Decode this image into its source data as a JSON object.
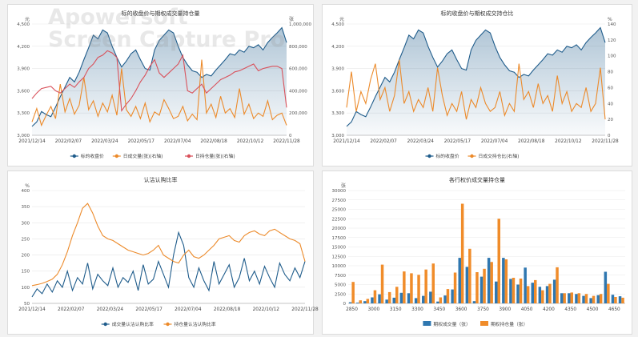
{
  "colors": {
    "blue": "#1f5c8b",
    "orange": "#ec8a2a",
    "red": "#d9515b",
    "axis": "#444444",
    "grid": "#e8e8e8",
    "bar_blue": "#2f77b0",
    "bar_orange": "#f08c2a"
  },
  "watermark": {
    "line1": "Apowersoft",
    "line2": "Screen Capture Pro"
  },
  "chart_data": [
    {
      "type": "line",
      "title": "标的收盘价与期权成交量持仓量",
      "y_unit_left": "元",
      "y_unit_right": "张",
      "x_ticks": [
        "2021/12/14",
        "2022/02/07",
        "2022/03/24",
        "2022/05/17",
        "2022/07/04",
        "2022/08/18",
        "2022/10/12",
        "2022/11/28"
      ],
      "ylim_left": [
        3000,
        4500
      ],
      "yticks_left": [
        "3,000",
        "3,300",
        "3,600",
        "3,900",
        "4,200",
        "4,500"
      ],
      "ylim_right": [
        0,
        1000000
      ],
      "yticks_right": [
        "0",
        "200,000",
        "400,000",
        "600,000",
        "800,000",
        "1,000,000"
      ],
      "series": [
        {
          "name": "标的收盘价",
          "axis": "left",
          "color": "#1f5c8b",
          "values": [
            3120,
            3180,
            3320,
            3280,
            3250,
            3380,
            3520,
            3650,
            3780,
            3720,
            3850,
            4020,
            4180,
            4350,
            4300,
            4420,
            4380,
            4200,
            4050,
            3920,
            4000,
            4100,
            4150,
            4020,
            3900,
            3880,
            4150,
            4280,
            4350,
            4420,
            4380,
            4200,
            4050,
            3950,
            3870,
            3850,
            3780,
            3820,
            3800,
            3880,
            3950,
            4020,
            4100,
            4080,
            4150,
            4120,
            4200,
            4180,
            4220,
            4150,
            4250,
            4320,
            4380,
            4450,
            4250
          ]
        },
        {
          "name": "日成交量(张)(右轴)",
          "axis": "right",
          "color": "#ec8a2a",
          "values": [
            120000,
            240000,
            90000,
            180000,
            260000,
            150000,
            460000,
            210000,
            330000,
            190000,
            270000,
            520000,
            230000,
            310000,
            170000,
            290000,
            210000,
            360000,
            180000,
            600000,
            230000,
            170000,
            260000,
            150000,
            290000,
            120000,
            210000,
            180000,
            320000,
            240000,
            150000,
            170000,
            260000,
            130000,
            190000,
            140000,
            680000,
            200000,
            280000,
            160000,
            350000,
            200000,
            240000,
            160000,
            420000,
            190000,
            280000,
            150000,
            200000,
            170000,
            310000,
            140000,
            180000,
            200000,
            90000
          ]
        },
        {
          "name": "日持仓量(张)(右轴)",
          "axis": "right",
          "color": "#d9515b",
          "values": [
            330000,
            380000,
            420000,
            430000,
            440000,
            400000,
            380000,
            420000,
            460000,
            430000,
            480000,
            520000,
            600000,
            640000,
            700000,
            720000,
            760000,
            740000,
            700000,
            220000,
            280000,
            330000,
            400000,
            480000,
            540000,
            620000,
            680000,
            560000,
            520000,
            560000,
            600000,
            640000,
            720000,
            400000,
            380000,
            420000,
            460000,
            380000,
            420000,
            460000,
            500000,
            520000,
            540000,
            570000,
            580000,
            600000,
            620000,
            640000,
            580000,
            600000,
            610000,
            620000,
            620000,
            600000,
            250000
          ]
        }
      ],
      "legend": "bottom"
    },
    {
      "type": "line",
      "title": "标的收盘价与期权成交持仓比",
      "y_unit_left": "元",
      "y_unit_right": "%",
      "x_ticks": [
        "2021/12/14",
        "2022/02/07",
        "2022/03/24",
        "2022/05/17",
        "2022/07/04",
        "2022/08/18",
        "2022/10/12",
        "2022/11/28"
      ],
      "ylim_left": [
        3000,
        4500
      ],
      "yticks_left": [
        "3,000",
        "3,300",
        "3,600",
        "3,900",
        "4,200",
        "4,500"
      ],
      "ylim_right": [
        0,
        140
      ],
      "yticks_right": [
        "0",
        "20",
        "40",
        "60",
        "80",
        "100",
        "120",
        "140"
      ],
      "series": [
        {
          "name": "标的收盘价",
          "axis": "left",
          "color": "#1f5c8b",
          "values": [
            3120,
            3180,
            3320,
            3280,
            3250,
            3380,
            3520,
            3650,
            3780,
            3720,
            3850,
            4020,
            4180,
            4350,
            4300,
            4420,
            4380,
            4200,
            4050,
            3920,
            4000,
            4100,
            4150,
            4020,
            3900,
            3880,
            4150,
            4280,
            4350,
            4420,
            4380,
            4200,
            4050,
            3950,
            3870,
            3850,
            3780,
            3820,
            3800,
            3880,
            3950,
            4020,
            4100,
            4080,
            4150,
            4120,
            4200,
            4180,
            4220,
            4150,
            4250,
            4320,
            4380,
            4450,
            4250
          ]
        },
        {
          "name": "日成交持仓比(右轴)",
          "axis": "right",
          "color": "#ec8a2a",
          "values": [
            35,
            80,
            30,
            55,
            40,
            70,
            90,
            45,
            60,
            30,
            50,
            95,
            40,
            55,
            30,
            45,
            35,
            60,
            30,
            85,
            50,
            25,
            40,
            30,
            55,
            20,
            45,
            35,
            60,
            40,
            30,
            35,
            55,
            25,
            40,
            30,
            90,
            45,
            55,
            35,
            65,
            40,
            50,
            30,
            75,
            40,
            55,
            30,
            40,
            35,
            60,
            30,
            40,
            85,
            20
          ]
        }
      ],
      "legend": "bottom"
    },
    {
      "type": "line",
      "title": "认沽认购比率",
      "y_unit_left": "%",
      "x_ticks": [
        "2021/12/14",
        "2022/02/07",
        "2022/03/24",
        "2022/05/17",
        "2022/07/04",
        "2022/08/18",
        "2022/10/12",
        "2022/11/28"
      ],
      "ylim_left": [
        50,
        400
      ],
      "yticks_left": [
        "50",
        "100",
        "150",
        "200",
        "250",
        "300",
        "350",
        "400"
      ],
      "series": [
        {
          "name": "成交量认沽认购比率",
          "color": "#1f5c8b",
          "values": [
            70,
            95,
            80,
            110,
            85,
            120,
            100,
            150,
            90,
            130,
            110,
            175,
            95,
            140,
            120,
            105,
            160,
            100,
            130,
            115,
            150,
            90,
            170,
            110,
            125,
            180,
            140,
            100,
            200,
            270,
            230,
            130,
            100,
            160,
            120,
            90,
            180,
            110,
            140,
            170,
            100,
            130,
            190,
            120,
            150,
            110,
            165,
            130,
            100,
            175,
            140,
            120,
            160,
            130,
            180
          ]
        },
        {
          "name": "持仓量认沽认购比率",
          "color": "#ec8a2a",
          "values": [
            105,
            108,
            112,
            118,
            125,
            140,
            170,
            210,
            260,
            300,
            345,
            360,
            330,
            290,
            260,
            250,
            245,
            235,
            225,
            215,
            210,
            205,
            200,
            205,
            215,
            230,
            200,
            190,
            180,
            175,
            200,
            215,
            195,
            190,
            200,
            215,
            230,
            250,
            255,
            260,
            245,
            240,
            260,
            270,
            275,
            265,
            260,
            275,
            280,
            270,
            260,
            250,
            245,
            235,
            180
          ]
        }
      ],
      "legend": "bottom"
    },
    {
      "type": "bar",
      "title": "各行权价成交量持仓量",
      "y_unit_left": "张",
      "ylim_left": [
        0,
        30000
      ],
      "yticks_left": [
        "0",
        "2500",
        "5000",
        "7500",
        "10000",
        "12500",
        "15000",
        "17500",
        "20000",
        "22500",
        "25000",
        "27500",
        "30000"
      ],
      "x_ticks": [
        "2850",
        "3000",
        "3150",
        "3300",
        "3450",
        "3600",
        "3750",
        "3900",
        "4050",
        "4200",
        "4350",
        "4500",
        "4650"
      ],
      "categories": [
        "2850",
        "2900",
        "2950",
        "3000",
        "3050",
        "3100",
        "3150",
        "3200",
        "3250",
        "3300",
        "3350",
        "3400",
        "3450",
        "3500",
        "3550",
        "3600",
        "3650",
        "3700",
        "3750",
        "3800",
        "3850",
        "3900",
        "3950",
        "4000",
        "4050",
        "4100",
        "4150",
        "4200",
        "4250",
        "4300",
        "4350",
        "4400",
        "4450",
        "4500",
        "4550",
        "4600",
        "4650",
        "4700"
      ],
      "series": [
        {
          "name": "期权成交量（张）",
          "color": "#2f77b0",
          "values": [
            300,
            200,
            600,
            1600,
            2400,
            1000,
            1500,
            2800,
            2700,
            1400,
            2000,
            3100,
            500,
            2100,
            3700,
            12100,
            9700,
            600,
            7100,
            12100,
            5800,
            12100,
            6500,
            5000,
            9500,
            5500,
            4400,
            4600,
            6300,
            2700,
            2700,
            2500,
            2000,
            1400,
            2200,
            8400,
            2300,
            1900
          ]
        },
        {
          "name": "期权持仓量（张）",
          "color": "#f08c2a",
          "values": [
            5700,
            800,
            1200,
            3500,
            10300,
            3000,
            4400,
            8500,
            8000,
            7600,
            9000,
            10600,
            1600,
            3800,
            8200,
            26500,
            14500,
            8300,
            9200,
            11000,
            22500,
            11700,
            6800,
            6600,
            4600,
            6200,
            3500,
            5200,
            9600,
            2700,
            2900,
            2700,
            2500,
            2000,
            2500,
            5200,
            1700,
            1500
          ]
        }
      ],
      "legend": "bottom"
    }
  ]
}
